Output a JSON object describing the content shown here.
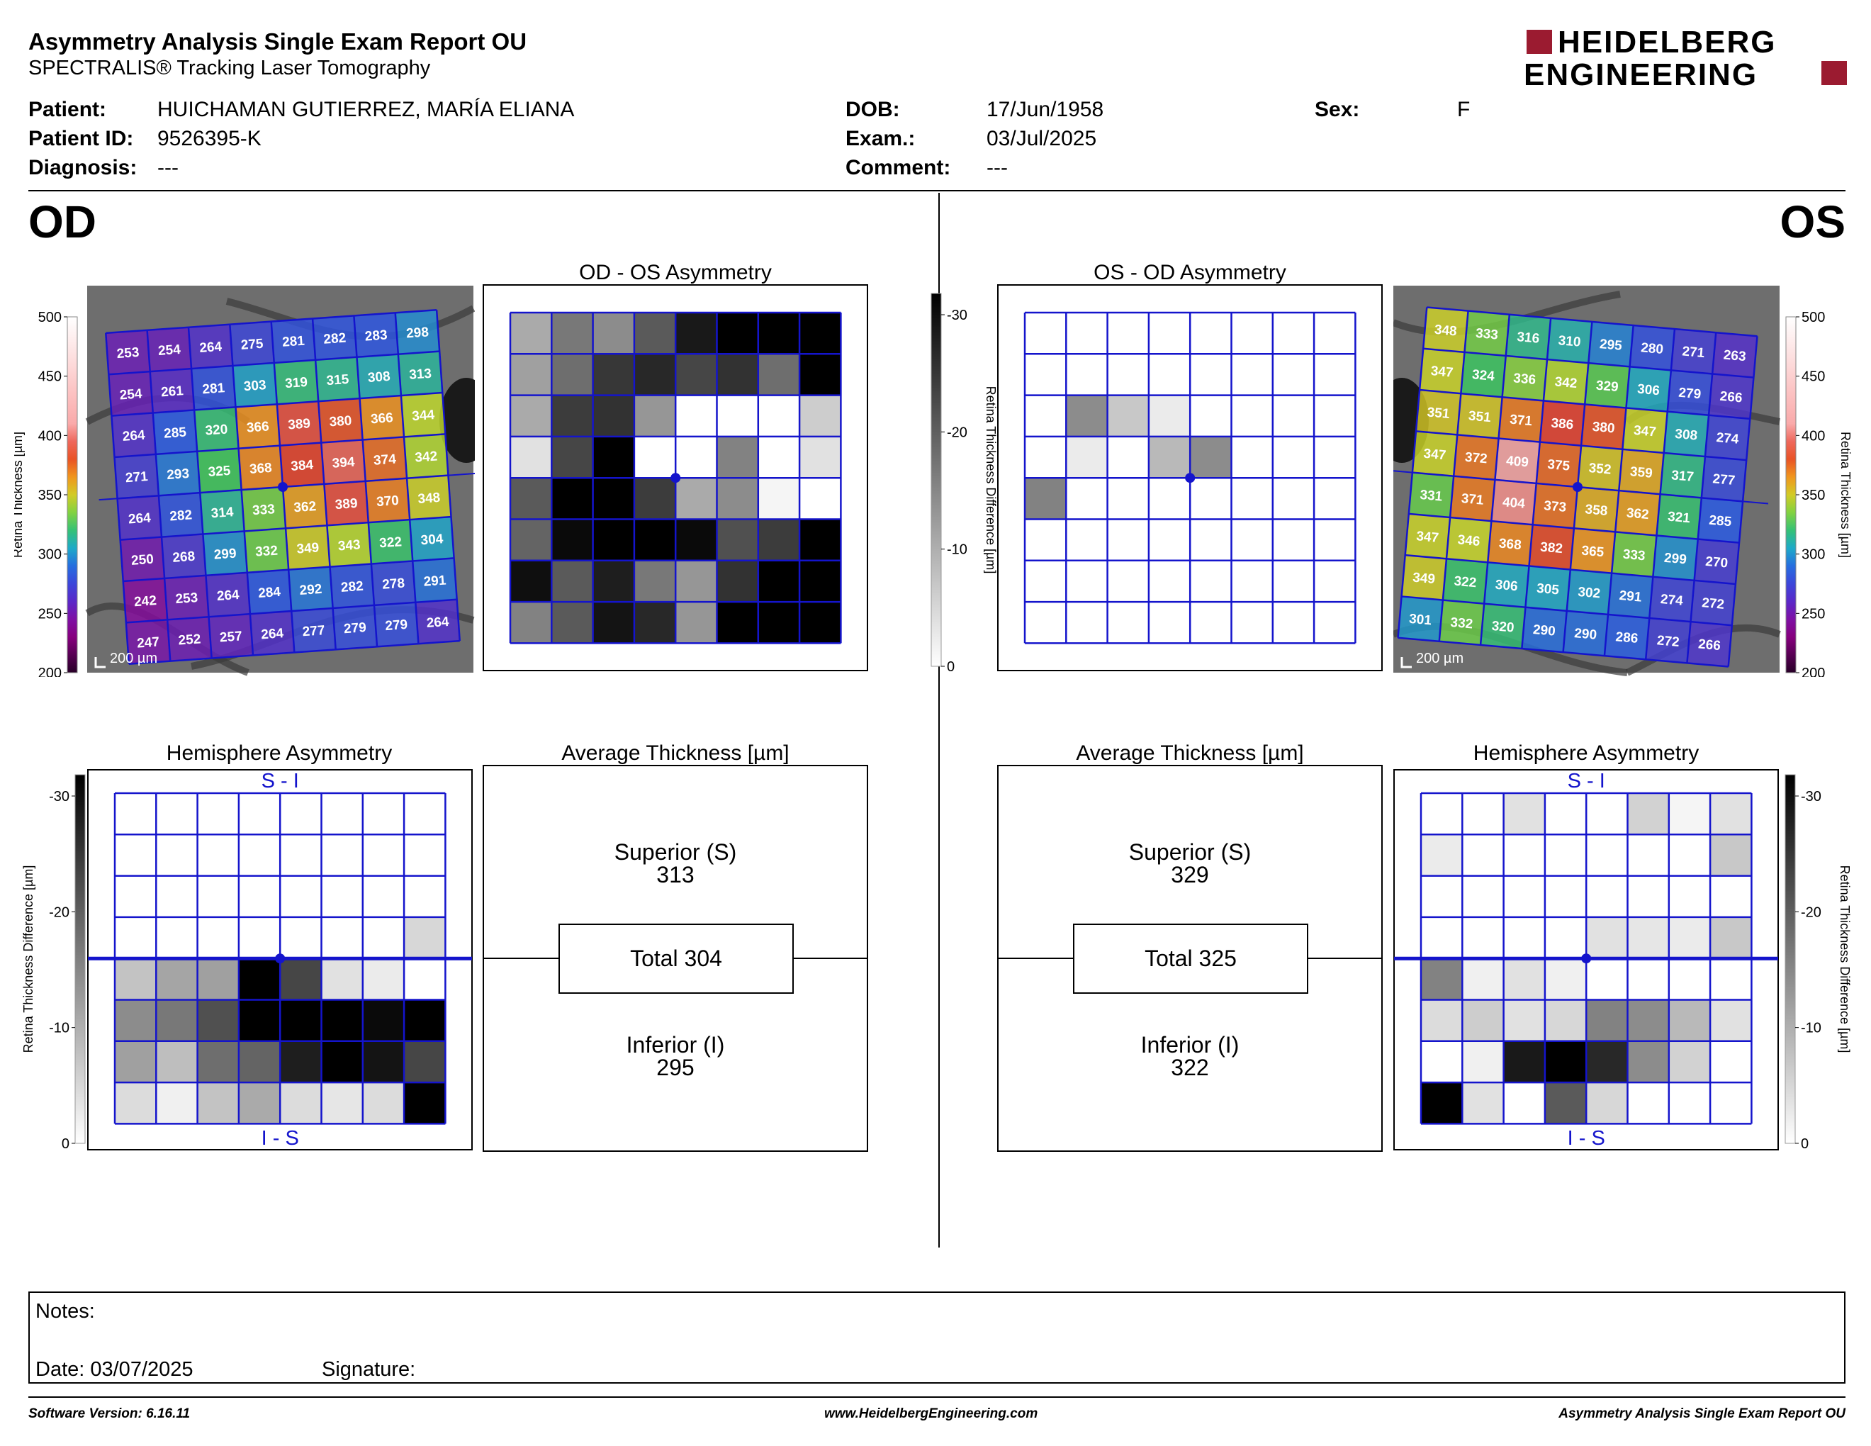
{
  "report": {
    "title": "Asymmetry Analysis Single Exam Report OU",
    "subtitle": "SPECTRALIS® Tracking Laser Tomography",
    "logo_line1": "HEIDELBERG",
    "logo_line2": "ENGINEERING",
    "brand_color": "#9b1b30"
  },
  "patient": {
    "patient_label": "Patient:",
    "patient_value": "HUICHAMAN GUTIERREZ, MARÍA ELIANA",
    "id_label": "Patient ID:",
    "id_value": "9526395-K",
    "diagnosis_label": "Diagnosis:",
    "diagnosis_value": "---",
    "dob_label": "DOB:",
    "dob_value": "17/Jun/1958",
    "exam_label": "Exam.:",
    "exam_value": "03/Jul/2025",
    "comment_label": "Comment:",
    "comment_value": "---",
    "sex_label": "Sex:",
    "sex_value": "F"
  },
  "od": {
    "eye_label": "OD",
    "thickness_axis_label": "Retina  Thickness [µm]",
    "thickness_ticks": [
      "500",
      "450",
      "400",
      "350",
      "300",
      "250",
      "200"
    ],
    "scale_label": "200 µm",
    "grid_values": [
      [
        253,
        254,
        264,
        275,
        281,
        282,
        283,
        298
      ],
      [
        254,
        261,
        281,
        303,
        319,
        315,
        308,
        313
      ],
      [
        264,
        285,
        320,
        366,
        389,
        380,
        366,
        344
      ],
      [
        271,
        293,
        325,
        368,
        384,
        394,
        374,
        342
      ],
      [
        264,
        282,
        314,
        333,
        362,
        389,
        370,
        348
      ],
      [
        250,
        268,
        299,
        332,
        349,
        343,
        322,
        304
      ],
      [
        242,
        253,
        264,
        284,
        292,
        282,
        278,
        291
      ],
      [
        247,
        252,
        257,
        264,
        277,
        279,
        279,
        264
      ]
    ],
    "asym_title": "OD - OS Asymmetry",
    "asym_grays": [
      [
        170,
        120,
        140,
        90,
        25,
        0,
        0,
        0
      ],
      [
        160,
        110,
        55,
        40,
        70,
        50,
        110,
        0
      ],
      [
        170,
        60,
        50,
        150,
        255,
        255,
        255,
        205
      ],
      [
        225,
        70,
        0,
        255,
        255,
        130,
        255,
        225
      ],
      [
        90,
        0,
        0,
        60,
        170,
        140,
        245,
        255
      ],
      [
        100,
        10,
        0,
        0,
        10,
        80,
        60,
        0
      ],
      [
        15,
        90,
        30,
        120,
        150,
        50,
        0,
        0
      ],
      [
        130,
        90,
        20,
        40,
        150,
        0,
        0,
        0
      ]
    ],
    "diff_axis_label": "Retina Thickness Difference [µm]",
    "diff_ticks": [
      "-30",
      "-20",
      "-10",
      "0"
    ],
    "hemi_title": "Hemisphere Asymmetry",
    "hemi_top_label": "S - I",
    "hemi_bottom_label": "I - S",
    "hemi_grays": [
      [
        255,
        255,
        255,
        255,
        255,
        255,
        255,
        255
      ],
      [
        255,
        255,
        255,
        255,
        255,
        255,
        255,
        255
      ],
      [
        255,
        255,
        255,
        255,
        255,
        255,
        255,
        255
      ],
      [
        255,
        255,
        255,
        255,
        255,
        255,
        255,
        215
      ],
      [
        195,
        165,
        160,
        0,
        70,
        225,
        235,
        255
      ],
      [
        140,
        120,
        80,
        0,
        0,
        0,
        10,
        0
      ],
      [
        160,
        190,
        110,
        100,
        30,
        0,
        20,
        70
      ],
      [
        220,
        240,
        195,
        170,
        220,
        230,
        220,
        0
      ]
    ],
    "avg_title": "Average Thickness [µm]",
    "superior_label": "Superior (S)",
    "superior_value": "313",
    "total_label": "Total 304",
    "inferior_label": "Inferior (I)",
    "inferior_value": "295"
  },
  "os": {
    "eye_label": "OS",
    "thickness_axis_label": "Retina  Thickness [µm]",
    "thickness_ticks": [
      "500",
      "450",
      "400",
      "350",
      "300",
      "250",
      "200"
    ],
    "scale_label": "200 µm",
    "grid_values": [
      [
        348,
        333,
        316,
        310,
        295,
        280,
        271,
        263
      ],
      [
        347,
        324,
        336,
        342,
        329,
        306,
        279,
        266
      ],
      [
        351,
        351,
        371,
        386,
        380,
        347,
        308,
        274
      ],
      [
        347,
        372,
        409,
        375,
        352,
        359,
        317,
        277
      ],
      [
        331,
        371,
        404,
        373,
        358,
        362,
        321,
        285
      ],
      [
        347,
        346,
        368,
        382,
        365,
        333,
        299,
        270
      ],
      [
        349,
        322,
        306,
        305,
        302,
        291,
        274,
        272
      ],
      [
        301,
        332,
        320,
        290,
        290,
        286,
        272,
        266
      ]
    ],
    "asym_title": "OS - OD Asymmetry",
    "asym_grays": [
      [
        255,
        255,
        255,
        255,
        255,
        255,
        255,
        255
      ],
      [
        255,
        255,
        255,
        255,
        255,
        255,
        255,
        255
      ],
      [
        255,
        140,
        200,
        235,
        255,
        255,
        255,
        255
      ],
      [
        255,
        235,
        255,
        185,
        140,
        255,
        255,
        255
      ],
      [
        130,
        255,
        255,
        255,
        255,
        255,
        255,
        255
      ],
      [
        255,
        255,
        255,
        255,
        255,
        255,
        255,
        255
      ],
      [
        255,
        255,
        255,
        255,
        255,
        255,
        255,
        255
      ],
      [
        255,
        255,
        255,
        255,
        255,
        255,
        255,
        255
      ]
    ],
    "diff_axis_label": "Retina Thickness Difference [µm]",
    "diff_ticks": [
      "-30",
      "-20",
      "-10",
      "0"
    ],
    "hemi_title": "Hemisphere Asymmetry",
    "hemi_top_label": "S - I",
    "hemi_bottom_label": "I - S",
    "hemi_grays": [
      [
        255,
        255,
        225,
        255,
        255,
        210,
        245,
        225
      ],
      [
        235,
        255,
        255,
        255,
        255,
        255,
        255,
        200
      ],
      [
        255,
        255,
        255,
        255,
        255,
        255,
        255,
        255
      ],
      [
        255,
        255,
        255,
        255,
        225,
        230,
        235,
        200
      ],
      [
        130,
        240,
        225,
        240,
        255,
        255,
        255,
        255
      ],
      [
        220,
        205,
        225,
        215,
        130,
        140,
        185,
        225
      ],
      [
        255,
        240,
        25,
        0,
        40,
        140,
        210,
        255
      ],
      [
        0,
        225,
        255,
        90,
        215,
        255,
        255,
        255
      ]
    ],
    "avg_title": "Average Thickness [µm]",
    "superior_label": "Superior (S)",
    "superior_value": "329",
    "total_label": "Total 325",
    "inferior_label": "Inferior (I)",
    "inferior_value": "322"
  },
  "notes": {
    "notes_label": "Notes:",
    "date_label": "Date: 03/07/2025",
    "signature_label": "Signature:"
  },
  "footer": {
    "software": "Software Version: 6.16.11",
    "website": "www.HeidelbergEngineering.com",
    "report_name": "Asymmetry Analysis Single Exam Report OU"
  }
}
